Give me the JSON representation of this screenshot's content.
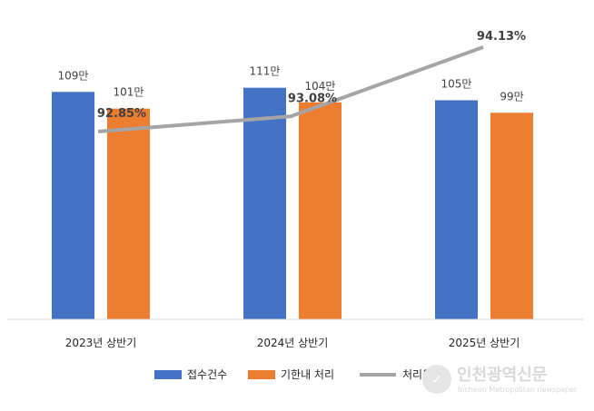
{
  "chart_data": {
    "type": "bar",
    "categories": [
      "2023년 상반기",
      "2024년 상반기",
      "2025년 상반기"
    ],
    "series": [
      {
        "name": "접수건수",
        "values": [
          109,
          111,
          105
        ],
        "labels": [
          "109만",
          "111만",
          "105만"
        ],
        "color": "#4472c4"
      },
      {
        "name": "기한내 처리",
        "values": [
          101,
          104,
          99
        ],
        "labels": [
          "101만",
          "104만",
          "99만"
        ],
        "color": "#ed7d31"
      }
    ],
    "line_series": {
      "name": "처리율",
      "values": [
        92.85,
        93.08,
        94.13
      ],
      "labels": [
        "92.85%",
        "93.08%",
        "94.13%"
      ],
      "color": "#a5a5a5"
    },
    "legend_position": "bottom",
    "grid": false
  },
  "watermark": {
    "title": "인천광역신문",
    "subtitle": "Incheon Metropolitan newspaper"
  }
}
